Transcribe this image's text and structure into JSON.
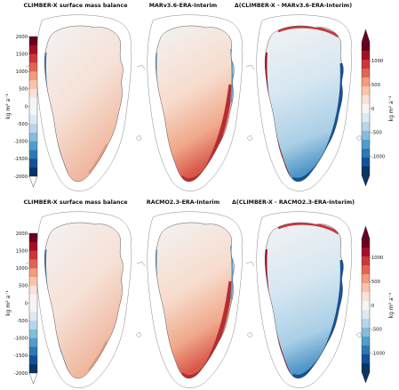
{
  "rows": [
    {
      "titles": [
        "CLIMBER-X surface mass balance",
        "MARv3.6-ERA-Interim",
        "Δ(CLIMBER-X - MARv3.6-ERA-Interim)"
      ],
      "panel_kinds": [
        "smb_climber",
        "smb_model",
        "diff"
      ]
    },
    {
      "titles": [
        "CLIMBER-X surface mass balance",
        "RACMO2.3-ERA-Interim",
        "Δ(CLIMBER-X - RACMO2.3-ERA-Interim)"
      ],
      "panel_kinds": [
        "smb_climber",
        "smb_model",
        "diff"
      ]
    }
  ],
  "colorbars": {
    "smb": {
      "ticks": [
        "2000",
        "1500",
        "1000",
        "500",
        "0",
        "-500",
        "-1000",
        "-1500",
        "-2000"
      ],
      "range": [
        -2000,
        2000
      ],
      "extend": "min",
      "unit": "kg m² a⁻¹",
      "colors": [
        "#67001f",
        "#a50f24",
        "#c9373a",
        "#df6653",
        "#f19c7e",
        "#f9c4aa",
        "#fbe2d4",
        "#f5f5f5",
        "#f5f5f5",
        "#dbe9f3",
        "#b7d6e9",
        "#86bcdc",
        "#529dca",
        "#2d78b5",
        "#155196",
        "#0b3366"
      ]
    },
    "diff": {
      "ticks": [
        "1000",
        "500",
        "0",
        "-500",
        "-1000"
      ],
      "range": [
        -1400,
        1400
      ],
      "extend": "both",
      "unit": "kg m² a⁻¹",
      "colors": [
        "#67001f",
        "#a50f24",
        "#c9373a",
        "#df6653",
        "#f19c7e",
        "#f9c4aa",
        "#fbe2d4",
        "#f5f5f5",
        "#dbe9f3",
        "#b7d6e9",
        "#86bcdc",
        "#529dca",
        "#2d78b5",
        "#155196",
        "#0b3366"
      ]
    }
  },
  "colors": {
    "interior": "#f3f3f3",
    "positive": "#c9373a",
    "negative": "#2d78b5",
    "coast_line": "#555555"
  }
}
